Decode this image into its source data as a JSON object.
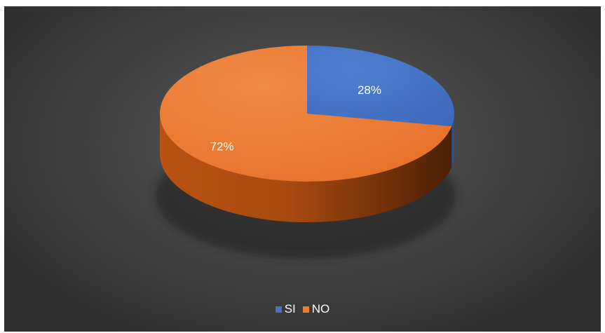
{
  "chart_data": {
    "type": "pie",
    "style": "3d",
    "categories": [
      "SI",
      "NO"
    ],
    "values": [
      28,
      72
    ],
    "data_labels": [
      "28%",
      "72%"
    ],
    "colors": [
      "#4472C4",
      "#ED7D31"
    ],
    "legend": {
      "position": "bottom",
      "entries": [
        {
          "label": "SI",
          "color": "#4472C4"
        },
        {
          "label": "NO",
          "color": "#ED7D31"
        }
      ]
    }
  }
}
